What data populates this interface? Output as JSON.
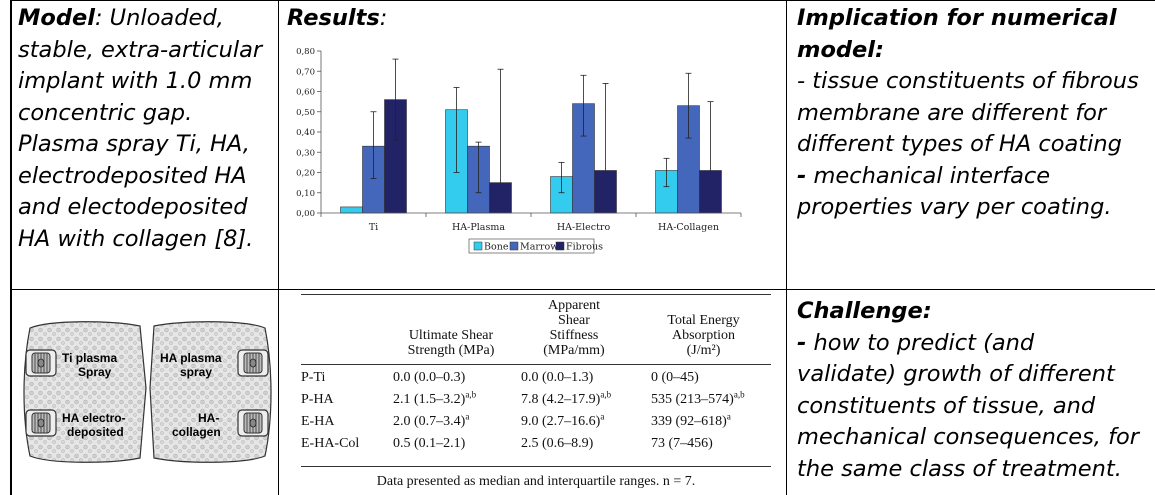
{
  "model": {
    "lead": "Model",
    "lines": [
      ": Unloaded,",
      "stable, extra-articular",
      "implant with 1.0 mm",
      "concentric gap.",
      "Plasma spray Ti, HA,",
      "electrodeposited HA",
      "and electodeposited",
      "HA with collagen [8]."
    ]
  },
  "results": {
    "title": "Results",
    "colon": ":"
  },
  "implication": {
    "lines": [
      "Implication for numerical",
      "model:"
    ],
    "body": [
      "- tissue constituents of fibrous",
      "membrane are different for",
      "different types of HA coating"
    ],
    "body2_dash": "-",
    "body2": [
      " mechanical interface",
      "properties vary per coating."
    ]
  },
  "challenge": {
    "title": "Challenge:",
    "dash": "-",
    "lines": [
      " how to predict (and",
      "validate) growth of different",
      "constituents of tissue, and",
      "mechanical consequences, for",
      "the same class of treatment."
    ]
  },
  "illustration": {
    "labels": [
      "Ti plasma",
      "Spray",
      "HA plasma",
      "spray",
      "HA electro-",
      "deposited",
      "HA-",
      "collagen"
    ]
  },
  "chart_data": {
    "type": "bar",
    "categories": [
      "Ti",
      "HA-Plasma",
      "HA-Electro",
      "HA-Collagen"
    ],
    "series": [
      {
        "name": "Bone",
        "color": "#33ccee",
        "values": [
          0.03,
          0.51,
          0.18,
          0.21
        ],
        "err_low": [
          null,
          0.2,
          0.1,
          0.13
        ],
        "err_high": [
          null,
          0.62,
          0.25,
          0.27
        ]
      },
      {
        "name": "Marrow",
        "color": "#4466bb",
        "values": [
          0.33,
          0.33,
          0.54,
          0.53
        ],
        "err_low": [
          0.17,
          0.1,
          0.38,
          0.37
        ],
        "err_high": [
          0.5,
          0.35,
          0.68,
          0.69
        ]
      },
      {
        "name": "Fibrous",
        "color": "#222266",
        "values": [
          0.56,
          0.15,
          0.21,
          0.21
        ],
        "err_low": [
          0.36,
          null,
          null,
          null
        ],
        "err_high": [
          0.76,
          0.71,
          0.64,
          0.55
        ]
      }
    ],
    "yticks": [
      "0,00",
      "0,10",
      "0,20",
      "0,30",
      "0,40",
      "0,50",
      "0,60",
      "0,70",
      "0,80"
    ],
    "ylim": [
      0,
      0.8
    ],
    "legend_position": "bottom"
  },
  "table": {
    "headers": [
      [
        "Ultimate Shear",
        "Strength (MPa)"
      ],
      [
        "Apparent",
        "Shear",
        "Stiffness",
        "(MPa/mm)"
      ],
      [
        "Total Energy",
        "Absorption",
        "(J/m²)"
      ]
    ],
    "rows": [
      {
        "label": "P-Ti",
        "c1": "0.0 (0.0–0.3)",
        "s1": "",
        "c2": "0.0 (0.0–1.3)",
        "s2": "",
        "c3": "0 (0–45)",
        "s3": ""
      },
      {
        "label": "P-HA",
        "c1": "2.1 (1.5–3.2)",
        "s1": "a,b",
        "c2": "7.8 (4.2–17.9)",
        "s2": "a,b",
        "c3": "535 (213–574)",
        "s3": "a,b"
      },
      {
        "label": "E-HA",
        "c1": "2.0 (0.7–3.4)",
        "s1": "a",
        "c2": "9.0 (2.7–16.6)",
        "s2": "a",
        "c3": "339 (92–618)",
        "s3": "a"
      },
      {
        "label": "E-HA-Col",
        "c1": "0.5 (0.1–2.1)",
        "s1": "",
        "c2": "2.5 (0.6–8.9)",
        "s2": "",
        "c3": "73 (7–456)",
        "s3": ""
      }
    ],
    "note": "Data presented as median and interquartile ranges. n = 7."
  }
}
